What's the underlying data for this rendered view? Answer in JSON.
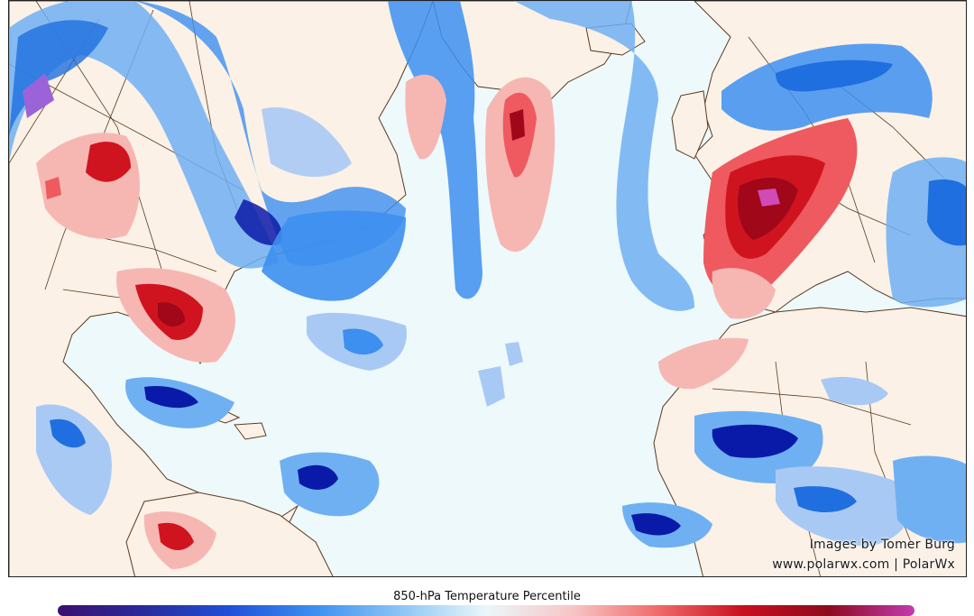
{
  "map": {
    "title": "850-hPa Temperature Percentile",
    "credits": {
      "line1": "Images by Tomer Burg",
      "line2": "www.polarwx.com | PolarWx"
    },
    "colorscale": {
      "land": "#fbf1e6",
      "ocean": "#eef9fb",
      "borders": "#4a3020",
      "very_cold": "#0a1aa8",
      "cold": "#1f6fe0",
      "cool": "#6fb0f2",
      "slightly_cool": "#a9c9f5",
      "slightly_warm": "#f6b7b3",
      "warm": "#ee5a5f",
      "very_warm": "#d0141f",
      "record_warm": "#a00718",
      "extreme_cold": "#9b63d8",
      "extreme_warm": "#d04ab8"
    }
  }
}
